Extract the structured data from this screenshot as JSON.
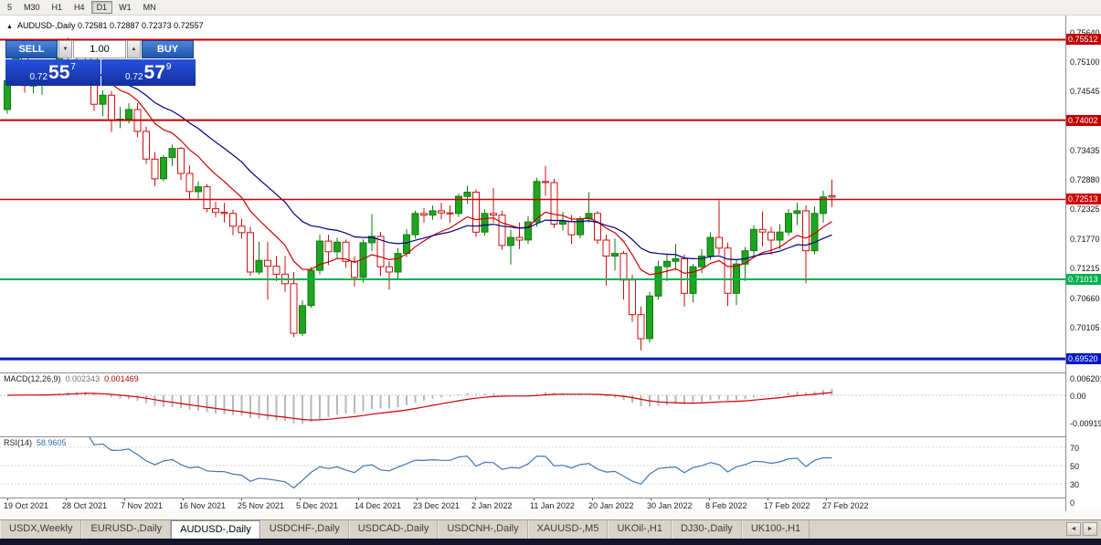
{
  "toolbar": {
    "timeframes": [
      {
        "label": "5",
        "active": false
      },
      {
        "label": "M30",
        "active": false
      },
      {
        "label": "H1",
        "active": false
      },
      {
        "label": "H4",
        "active": false
      },
      {
        "label": "D1",
        "active": true
      },
      {
        "label": "W1",
        "active": false
      },
      {
        "label": "MN",
        "active": false
      }
    ]
  },
  "chart_header": {
    "collapse_marker": "▲",
    "symbol": "AUDUSD-,Daily",
    "ohlc": "0.72581 0.72887 0.72373 0.72557"
  },
  "trade_panel": {
    "sell_label": "SELL",
    "buy_label": "BUY",
    "volume": "1.00",
    "spinner_down": "▼",
    "spinner_up": "▲",
    "sell_price": {
      "prefix": "0.72",
      "big": "55",
      "sup": "7"
    },
    "buy_price": {
      "prefix": "0.72",
      "big": "57",
      "sup": "9"
    }
  },
  "price_axis": {
    "labels": [
      "0.75640",
      "0.75100",
      "0.74545",
      "0.73435",
      "0.72880",
      "0.72325",
      "0.71770",
      "0.71215",
      "0.70660",
      "0.70105"
    ]
  },
  "hlines": [
    {
      "price": 0.75512,
      "label": "0.75512",
      "color": "#c00000",
      "width": 2
    },
    {
      "price": 0.74002,
      "label": "0.74002",
      "color": "#c00000",
      "width": 2
    },
    {
      "price": 0.72513,
      "label": "0.72513",
      "color": "#d00000",
      "width": 1.4
    },
    {
      "price": 0.71013,
      "label": "0.71013",
      "color": "#00b050",
      "width": 2
    },
    {
      "price": 0.6952,
      "label": "0.69520",
      "color": "#0018c8",
      "width": 3
    }
  ],
  "macd_panel": {
    "label": "MACD(12,26,9)",
    "value_main": "0.002343",
    "value_signal": "0.001469",
    "axis": [
      {
        "text": "0.006201",
        "v": 0.006201
      },
      {
        "text": "0.00",
        "v": 0
      },
      {
        "text": "-0.00919",
        "v": -0.00919
      }
    ]
  },
  "rsi_panel": {
    "label": "RSI(14)",
    "value": "58.9605",
    "levels": [
      70,
      50,
      30
    ],
    "axis": [
      {
        "text": "70",
        "v": 70
      },
      {
        "text": "50",
        "v": 50
      },
      {
        "text": "30",
        "v": 30
      },
      {
        "text": "0",
        "v": 0
      }
    ]
  },
  "date_axis": {
    "labels": [
      "19 Oct 2021",
      "28 Oct 2021",
      "7 Nov 2021",
      "16 Nov 2021",
      "25 Nov 2021",
      "5 Dec 2021",
      "14 Dec 2021",
      "23 Dec 2021",
      "2 Jan 2022",
      "11 Jan 2022",
      "20 Jan 2022",
      "30 Jan 2022",
      "8 Feb 2022",
      "17 Feb 2022",
      "27 Feb 2022"
    ]
  },
  "tab_bar": {
    "tabs": [
      {
        "label": "USDX,Weekly",
        "active": false
      },
      {
        "label": "EURUSD-,Daily",
        "active": false
      },
      {
        "label": "AUDUSD-,Daily",
        "active": true
      },
      {
        "label": "USDCHF-,Daily",
        "active": false
      },
      {
        "label": "USDCAD-,Daily",
        "active": false
      },
      {
        "label": "USDCNH-,Daily",
        "active": false
      },
      {
        "label": "XAUUSD-,M5",
        "active": false
      },
      {
        "label": "UKOil-,H1",
        "active": false
      },
      {
        "label": "DJ30-,Daily",
        "active": false
      },
      {
        "label": "UK100-,H1",
        "active": false
      }
    ],
    "scroll_left": "◄",
    "scroll_right": "►"
  },
  "colors": {
    "bull": "#1fa51f",
    "bull_border": "#127a12",
    "bear_stroke": "#cc1111",
    "ma_fast": "#cc0000",
    "ma_slow": "#000080",
    "macd_hist": "#b8b8b8",
    "macd_signal": "#cc0000",
    "rsi_line": "#3f76b6"
  },
  "chart_data": {
    "type": "candlestick",
    "symbol": "AUDUSD-",
    "timeframe": "Daily",
    "title": "AUDUSD-,Daily",
    "visible_range": {
      "start": "19 Oct 2021",
      "end": "1 Mar 2022"
    },
    "y_range": [
      0.689,
      0.757
    ],
    "x_tick_labels": [
      "19 Oct 2021",
      "28 Oct 2021",
      "7 Nov 2021",
      "16 Nov 2021",
      "25 Nov 2021",
      "5 Dec 2021",
      "14 Dec 2021",
      "23 Dec 2021",
      "2 Jan 2022",
      "11 Jan 2022",
      "20 Jan 2022",
      "30 Jan 2022",
      "8 Feb 2022",
      "17 Feb 2022",
      "27 Feb 2022"
    ],
    "current_bar": {
      "open": 0.72581,
      "high": 0.72887,
      "low": 0.72373,
      "close": 0.72557
    },
    "bid": 0.72557,
    "ask": 0.72579,
    "horizontal_lines": [
      0.75512,
      0.74002,
      0.72513,
      0.71013,
      0.6952
    ],
    "overlays": [
      {
        "name": "moving-average-fast",
        "color": "#cc0000",
        "period": 10
      },
      {
        "name": "moving-average-slow",
        "color": "#000080",
        "period": 22
      }
    ],
    "indicators": [
      {
        "name": "MACD(12,26,9)",
        "values": [
          0.002343,
          0.001469
        ],
        "range": [
          -0.00919,
          0.006201
        ]
      },
      {
        "name": "RSI(14)",
        "value": 58.9605,
        "levels": [
          30,
          50,
          70
        ]
      }
    ],
    "ohlc": [
      [
        0.742,
        0.7478,
        0.7412,
        0.7474
      ],
      [
        0.7474,
        0.7525,
        0.7465,
        0.7517
      ],
      [
        0.7517,
        0.7522,
        0.7452,
        0.7465
      ],
      [
        0.7465,
        0.749,
        0.745,
        0.7466
      ],
      [
        0.7466,
        0.75,
        0.7448,
        0.7488
      ],
      [
        0.7488,
        0.7512,
        0.7478,
        0.7503
      ],
      [
        0.7503,
        0.7527,
        0.7492,
        0.7517
      ],
      [
        0.7517,
        0.7555,
        0.751,
        0.7539
      ],
      [
        0.7539,
        0.7547,
        0.7498,
        0.7518
      ],
      [
        0.7518,
        0.7535,
        0.7495,
        0.752
      ],
      [
        0.752,
        0.7535,
        0.7418,
        0.743
      ],
      [
        0.743,
        0.7456,
        0.7408,
        0.7447
      ],
      [
        0.7447,
        0.7455,
        0.7378,
        0.74
      ],
      [
        0.74,
        0.7425,
        0.7385,
        0.7402
      ],
      [
        0.7402,
        0.7432,
        0.7394,
        0.742
      ],
      [
        0.742,
        0.7432,
        0.7368,
        0.7379
      ],
      [
        0.7379,
        0.7388,
        0.7318,
        0.7327
      ],
      [
        0.7327,
        0.734,
        0.7277,
        0.729
      ],
      [
        0.729,
        0.7335,
        0.7285,
        0.733
      ],
      [
        0.733,
        0.7354,
        0.7314,
        0.7347
      ],
      [
        0.7347,
        0.735,
        0.7288,
        0.73
      ],
      [
        0.73,
        0.7315,
        0.725,
        0.7266
      ],
      [
        0.7266,
        0.7285,
        0.7253,
        0.7275
      ],
      [
        0.7275,
        0.728,
        0.7227,
        0.7234
      ],
      [
        0.7234,
        0.7247,
        0.7218,
        0.7227
      ],
      [
        0.7227,
        0.7245,
        0.7208,
        0.7225
      ],
      [
        0.7225,
        0.7232,
        0.7184,
        0.7201
      ],
      [
        0.7201,
        0.7215,
        0.7178,
        0.7189
      ],
      [
        0.7189,
        0.72,
        0.7108,
        0.7115
      ],
      [
        0.7115,
        0.7172,
        0.711,
        0.7137
      ],
      [
        0.7137,
        0.7172,
        0.7063,
        0.7126
      ],
      [
        0.7126,
        0.7145,
        0.7098,
        0.7111
      ],
      [
        0.7111,
        0.7145,
        0.7078,
        0.7093
      ],
      [
        0.7093,
        0.7115,
        0.6993,
        0.7
      ],
      [
        0.7,
        0.7062,
        0.6995,
        0.7052
      ],
      [
        0.7052,
        0.7125,
        0.7048,
        0.7118
      ],
      [
        0.7118,
        0.7185,
        0.711,
        0.7173
      ],
      [
        0.7173,
        0.7185,
        0.7128,
        0.7153
      ],
      [
        0.7153,
        0.718,
        0.7141,
        0.7171
      ],
      [
        0.7171,
        0.7176,
        0.7123,
        0.7135
      ],
      [
        0.7135,
        0.7145,
        0.7088,
        0.7105
      ],
      [
        0.7105,
        0.7176,
        0.7095,
        0.717
      ],
      [
        0.717,
        0.7224,
        0.7155,
        0.7182
      ],
      [
        0.7182,
        0.719,
        0.7108,
        0.7125
      ],
      [
        0.7125,
        0.7135,
        0.7082,
        0.7115
      ],
      [
        0.7115,
        0.716,
        0.7103,
        0.715
      ],
      [
        0.715,
        0.7195,
        0.7143,
        0.7185
      ],
      [
        0.7185,
        0.723,
        0.7178,
        0.7225
      ],
      [
        0.7225,
        0.7235,
        0.7208,
        0.7222
      ],
      [
        0.7222,
        0.724,
        0.7213,
        0.723
      ],
      [
        0.723,
        0.7245,
        0.7214,
        0.7226
      ],
      [
        0.7226,
        0.724,
        0.7208,
        0.7225
      ],
      [
        0.7225,
        0.7262,
        0.7218,
        0.7257
      ],
      [
        0.7257,
        0.7277,
        0.7243,
        0.7265
      ],
      [
        0.7265,
        0.727,
        0.7181,
        0.719
      ],
      [
        0.719,
        0.7233,
        0.7183,
        0.7225
      ],
      [
        0.7225,
        0.7273,
        0.7208,
        0.7222
      ],
      [
        0.7222,
        0.723,
        0.7157,
        0.7165
      ],
      [
        0.7165,
        0.7194,
        0.7129,
        0.718
      ],
      [
        0.718,
        0.7208,
        0.7158,
        0.7175
      ],
      [
        0.7175,
        0.722,
        0.7168,
        0.7209
      ],
      [
        0.7209,
        0.7292,
        0.72,
        0.7285
      ],
      [
        0.7285,
        0.7314,
        0.7258,
        0.7283
      ],
      [
        0.7283,
        0.729,
        0.7198,
        0.7205
      ],
      [
        0.7205,
        0.7228,
        0.7193,
        0.721
      ],
      [
        0.721,
        0.7222,
        0.7168,
        0.7185
      ],
      [
        0.7185,
        0.722,
        0.7178,
        0.7215
      ],
      [
        0.7215,
        0.7265,
        0.7208,
        0.7225
      ],
      [
        0.7225,
        0.723,
        0.7168,
        0.7175
      ],
      [
        0.7175,
        0.7185,
        0.709,
        0.7145
      ],
      [
        0.7145,
        0.7178,
        0.7118,
        0.715
      ],
      [
        0.715,
        0.7155,
        0.7063,
        0.71
      ],
      [
        0.71,
        0.711,
        0.7021,
        0.7035
      ],
      [
        0.7035,
        0.705,
        0.6968,
        0.699
      ],
      [
        0.699,
        0.7078,
        0.6983,
        0.707
      ],
      [
        0.707,
        0.7136,
        0.7063,
        0.7125
      ],
      [
        0.7125,
        0.715,
        0.7098,
        0.7135
      ],
      [
        0.7135,
        0.7168,
        0.7118,
        0.714
      ],
      [
        0.714,
        0.7148,
        0.705,
        0.7075
      ],
      [
        0.7075,
        0.713,
        0.7058,
        0.7125
      ],
      [
        0.7125,
        0.7158,
        0.7113,
        0.7145
      ],
      [
        0.7145,
        0.719,
        0.7138,
        0.718
      ],
      [
        0.718,
        0.7249,
        0.7148,
        0.716
      ],
      [
        0.716,
        0.717,
        0.7051,
        0.7075
      ],
      [
        0.7075,
        0.7138,
        0.7053,
        0.713
      ],
      [
        0.713,
        0.7162,
        0.7098,
        0.7155
      ],
      [
        0.7155,
        0.7203,
        0.7143,
        0.7195
      ],
      [
        0.7195,
        0.7229,
        0.7163,
        0.719
      ],
      [
        0.719,
        0.72,
        0.7148,
        0.7175
      ],
      [
        0.7175,
        0.7205,
        0.7158,
        0.719
      ],
      [
        0.719,
        0.7233,
        0.7183,
        0.7225
      ],
      [
        0.7225,
        0.7246,
        0.7203,
        0.723
      ],
      [
        0.723,
        0.724,
        0.7094,
        0.7155
      ],
      [
        0.7155,
        0.7238,
        0.7148,
        0.7225
      ],
      [
        0.7225,
        0.7268,
        0.7208,
        0.7256
      ],
      [
        0.72581,
        0.72887,
        0.72373,
        0.72557
      ]
    ]
  }
}
